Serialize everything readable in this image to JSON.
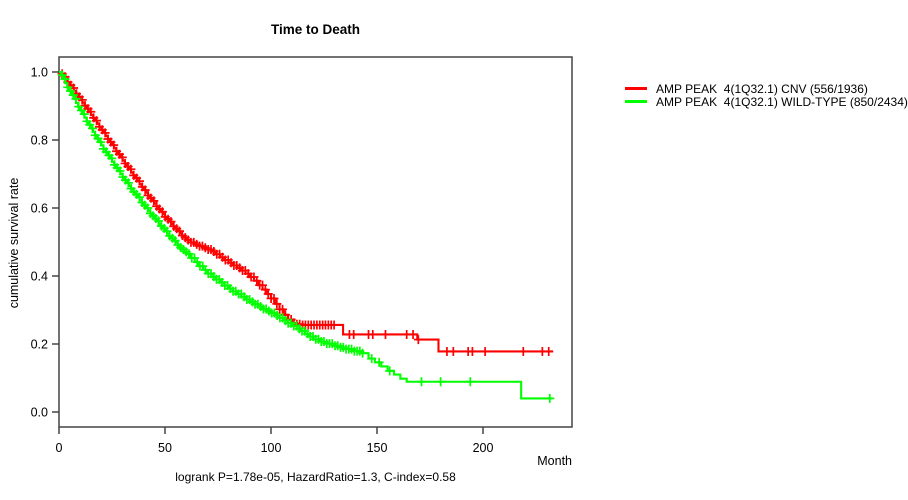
{
  "title": "Time to Death",
  "legend": {
    "items": [
      {
        "label": "AMP PEAK  4(1Q32.1) CNV (556/1936)",
        "color": "#ff0000"
      },
      {
        "label": "AMP PEAK  4(1Q32.1) WILD-TYPE (850/2434)",
        "color": "#00ff00"
      }
    ]
  },
  "chart_data": {
    "type": "line",
    "subtype": "kaplan-meier-step",
    "title": "Time to Death",
    "xlabel": "Month",
    "ylabel": "cumulative survival rate",
    "annotation": "logrank P=1.78e-05, HazardRatio=1.3, C-index=0.58",
    "xlim": [
      0,
      242
    ],
    "ylim": [
      0,
      1.0
    ],
    "grid": false,
    "legend_position": "right-outside",
    "frame_color": "#444444",
    "xticks": [
      [
        0,
        "0"
      ],
      [
        50,
        "50"
      ],
      [
        100,
        "100"
      ],
      [
        150,
        "150"
      ],
      [
        200,
        "200"
      ]
    ],
    "yticks": [
      [
        0.0,
        "0.0"
      ],
      [
        0.2,
        "0.2"
      ],
      [
        0.4,
        "0.4"
      ],
      [
        0.6,
        "0.6"
      ],
      [
        0.8,
        "0.8"
      ],
      [
        1.0,
        "1.0"
      ]
    ],
    "series": [
      {
        "name": "AMP PEAK  4(1Q32.1) CNV (556/1936)",
        "color": "#ff0000",
        "end_month": 233,
        "points": [
          [
            0,
            1.0
          ],
          [
            1,
            0.995
          ],
          [
            2,
            0.986
          ],
          [
            3,
            0.978
          ],
          [
            4,
            0.97
          ],
          [
            5,
            0.961
          ],
          [
            6,
            0.953
          ],
          [
            7,
            0.944
          ],
          [
            8,
            0.936
          ],
          [
            9,
            0.927
          ],
          [
            10,
            0.918
          ],
          [
            11,
            0.91
          ],
          [
            12,
            0.901
          ],
          [
            13,
            0.892
          ],
          [
            14,
            0.883
          ],
          [
            15,
            0.874
          ],
          [
            16,
            0.865
          ],
          [
            17,
            0.857
          ],
          [
            18,
            0.848
          ],
          [
            19,
            0.839
          ],
          [
            20,
            0.83
          ],
          [
            21,
            0.821
          ],
          [
            22,
            0.812
          ],
          [
            23,
            0.803
          ],
          [
            24,
            0.794
          ],
          [
            25,
            0.785
          ],
          [
            26,
            0.776
          ],
          [
            27,
            0.767
          ],
          [
            28,
            0.758
          ],
          [
            29,
            0.749
          ],
          [
            30,
            0.74
          ],
          [
            31,
            0.731
          ],
          [
            32,
            0.722
          ],
          [
            33,
            0.714
          ],
          [
            34,
            0.705
          ],
          [
            35,
            0.696
          ],
          [
            36,
            0.688
          ],
          [
            37,
            0.679
          ],
          [
            38,
            0.67
          ],
          [
            39,
            0.662
          ],
          [
            40,
            0.653
          ],
          [
            41,
            0.645
          ],
          [
            42,
            0.637
          ],
          [
            43,
            0.629
          ],
          [
            44,
            0.621
          ],
          [
            45,
            0.613
          ],
          [
            46,
            0.605
          ],
          [
            47,
            0.597
          ],
          [
            48,
            0.589
          ],
          [
            49,
            0.582
          ],
          [
            50,
            0.574
          ],
          [
            51,
            0.567
          ],
          [
            52,
            0.56
          ],
          [
            53,
            0.553
          ],
          [
            54,
            0.546
          ],
          [
            55,
            0.539
          ],
          [
            56,
            0.532
          ],
          [
            57,
            0.526
          ],
          [
            58,
            0.519
          ],
          [
            59,
            0.513
          ],
          [
            60,
            0.506
          ],
          [
            62,
            0.499
          ],
          [
            64,
            0.493
          ],
          [
            66,
            0.488
          ],
          [
            68,
            0.483
          ],
          [
            70,
            0.478
          ],
          [
            72,
            0.472
          ],
          [
            74,
            0.464
          ],
          [
            76,
            0.455
          ],
          [
            78,
            0.447
          ],
          [
            80,
            0.439
          ],
          [
            82,
            0.431
          ],
          [
            84,
            0.424
          ],
          [
            86,
            0.416
          ],
          [
            88,
            0.407
          ],
          [
            90,
            0.397
          ],
          [
            92,
            0.386
          ],
          [
            94,
            0.373
          ],
          [
            96,
            0.36
          ],
          [
            98,
            0.347
          ],
          [
            100,
            0.334
          ],
          [
            102,
            0.318
          ],
          [
            104,
            0.302
          ],
          [
            106,
            0.286
          ],
          [
            108,
            0.272
          ],
          [
            110,
            0.262
          ],
          [
            112,
            0.258
          ],
          [
            114,
            0.256
          ],
          [
            134,
            0.228
          ],
          [
            169,
            0.213
          ],
          [
            179,
            0.178
          ]
        ],
        "censor_dense": {
          "from": 1.5,
          "to": 131,
          "step": 1.35
        },
        "censors": [
          137,
          139,
          146,
          148,
          154,
          164,
          167,
          169.5,
          183,
          186,
          193,
          195,
          201,
          219,
          228,
          231
        ]
      },
      {
        "name": "AMP PEAK  4(1Q32.1) WILD-TYPE (850/2434)",
        "color": "#00ff00",
        "end_month": 232.5,
        "points": [
          [
            0,
            1.0
          ],
          [
            1,
            0.991
          ],
          [
            2,
            0.979
          ],
          [
            3,
            0.967
          ],
          [
            4,
            0.955
          ],
          [
            5,
            0.944
          ],
          [
            6,
            0.932
          ],
          [
            7,
            0.921
          ],
          [
            8,
            0.909
          ],
          [
            9,
            0.898
          ],
          [
            10,
            0.887
          ],
          [
            11,
            0.876
          ],
          [
            12,
            0.866
          ],
          [
            13,
            0.855
          ],
          [
            14,
            0.845
          ],
          [
            15,
            0.834
          ],
          [
            16,
            0.824
          ],
          [
            17,
            0.814
          ],
          [
            18,
            0.804
          ],
          [
            19,
            0.794
          ],
          [
            20,
            0.784
          ],
          [
            21,
            0.774
          ],
          [
            22,
            0.765
          ],
          [
            23,
            0.755
          ],
          [
            24,
            0.746
          ],
          [
            25,
            0.736
          ],
          [
            26,
            0.727
          ],
          [
            27,
            0.718
          ],
          [
            28,
            0.709
          ],
          [
            29,
            0.7
          ],
          [
            30,
            0.691
          ],
          [
            31,
            0.682
          ],
          [
            32,
            0.674
          ],
          [
            33,
            0.665
          ],
          [
            34,
            0.657
          ],
          [
            35,
            0.648
          ],
          [
            36,
            0.64
          ],
          [
            37,
            0.632
          ],
          [
            38,
            0.624
          ],
          [
            39,
            0.616
          ],
          [
            40,
            0.608
          ],
          [
            41,
            0.6
          ],
          [
            42,
            0.592
          ],
          [
            43,
            0.584
          ],
          [
            44,
            0.577
          ],
          [
            45,
            0.569
          ],
          [
            46,
            0.562
          ],
          [
            47,
            0.554
          ],
          [
            48,
            0.547
          ],
          [
            49,
            0.54
          ],
          [
            50,
            0.532
          ],
          [
            51,
            0.525
          ],
          [
            52,
            0.518
          ],
          [
            53,
            0.511
          ],
          [
            54,
            0.504
          ],
          [
            55,
            0.498
          ],
          [
            56,
            0.491
          ],
          [
            57,
            0.484
          ],
          [
            58,
            0.478
          ],
          [
            59,
            0.471
          ],
          [
            60,
            0.465
          ],
          [
            62,
            0.453
          ],
          [
            64,
            0.441
          ],
          [
            66,
            0.429
          ],
          [
            68,
            0.418
          ],
          [
            70,
            0.407
          ],
          [
            72,
            0.398
          ],
          [
            74,
            0.39
          ],
          [
            76,
            0.381
          ],
          [
            78,
            0.372
          ],
          [
            80,
            0.363
          ],
          [
            82,
            0.355
          ],
          [
            84,
            0.347
          ],
          [
            86,
            0.339
          ],
          [
            88,
            0.331
          ],
          [
            90,
            0.324
          ],
          [
            92,
            0.317
          ],
          [
            94,
            0.31
          ],
          [
            96,
            0.303
          ],
          [
            98,
            0.297
          ],
          [
            100,
            0.291
          ],
          [
            102,
            0.284
          ],
          [
            104,
            0.277
          ],
          [
            106,
            0.269
          ],
          [
            108,
            0.261
          ],
          [
            110,
            0.253
          ],
          [
            112,
            0.245
          ],
          [
            114,
            0.238
          ],
          [
            116,
            0.23
          ],
          [
            118,
            0.222
          ],
          [
            120,
            0.214
          ],
          [
            123,
            0.207
          ],
          [
            126,
            0.201
          ],
          [
            129,
            0.195
          ],
          [
            132,
            0.19
          ],
          [
            135,
            0.185
          ],
          [
            139,
            0.179
          ],
          [
            143,
            0.173
          ],
          [
            146,
            0.157
          ],
          [
            149,
            0.146
          ],
          [
            152,
            0.134
          ],
          [
            155,
            0.121
          ],
          [
            158,
            0.11
          ],
          [
            161,
            0.098
          ],
          [
            164,
            0.089
          ],
          [
            218,
            0.04
          ]
        ],
        "censor_dense": {
          "from": 1.5,
          "to": 144,
          "step": 1.3
        },
        "censors": [
          147.5,
          151,
          156,
          171,
          180,
          194,
          231.5
        ]
      }
    ]
  }
}
